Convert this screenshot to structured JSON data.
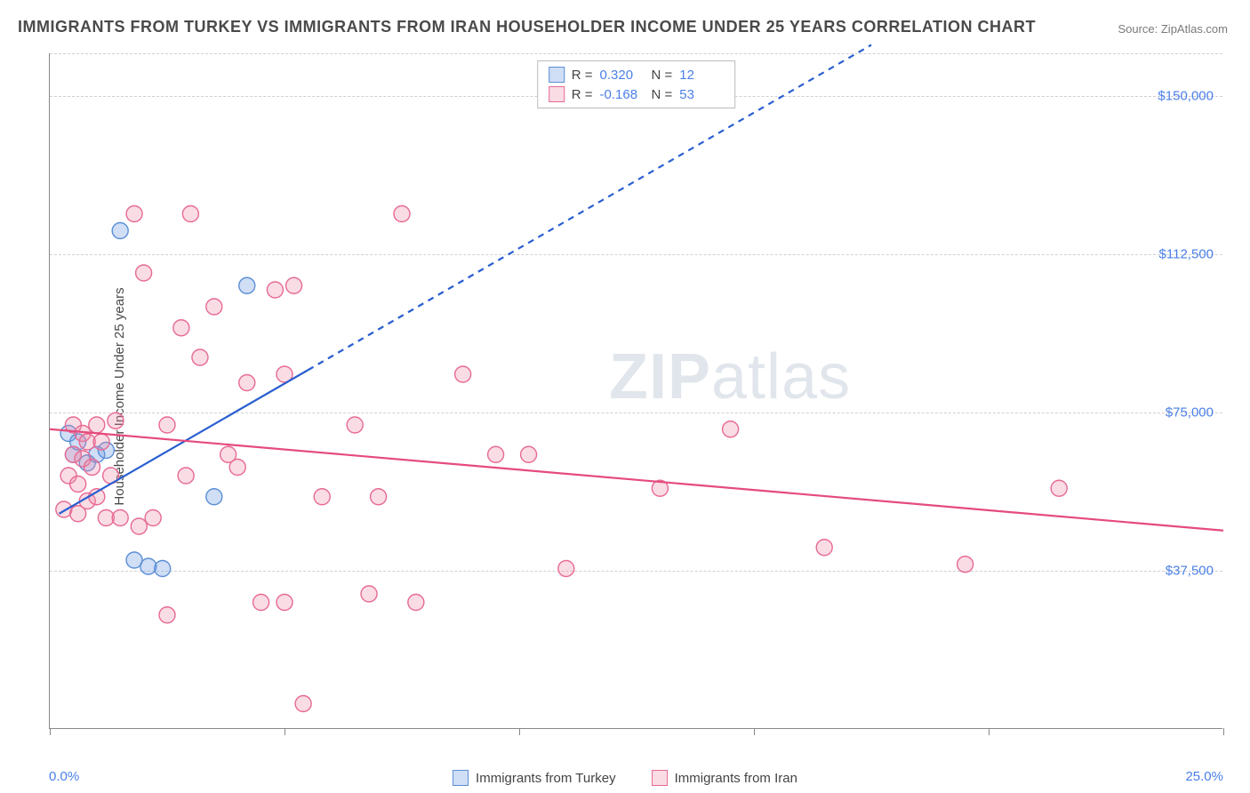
{
  "title": "IMMIGRANTS FROM TURKEY VS IMMIGRANTS FROM IRAN HOUSEHOLDER INCOME UNDER 25 YEARS CORRELATION CHART",
  "source_label": "Source: ",
  "source_name": "ZipAtlas.com",
  "ylabel": "Householder Income Under 25 years",
  "watermark_bold": "ZIP",
  "watermark_thin": "atlas",
  "chart": {
    "type": "scatter",
    "background_color": "#ffffff",
    "grid_color": "#d0d0d0",
    "axis_color": "#888888",
    "tick_label_color": "#4a7fe8",
    "x": {
      "min": 0,
      "max": 25,
      "unit": "%",
      "tick_step": 5,
      "min_label": "0.0%",
      "max_label": "25.0%"
    },
    "y": {
      "min": 0,
      "max": 160000,
      "unit": "$",
      "ticks": [
        37500,
        75000,
        112500,
        150000
      ],
      "tick_labels": [
        "$37,500",
        "$75,000",
        "$112,500",
        "$150,000"
      ]
    },
    "series": [
      {
        "key": "turkey",
        "label": "Immigrants from Turkey",
        "marker_fill": "rgba(120,160,230,0.35)",
        "marker_stroke": "#5b8fd6",
        "line_color": "#2a5fd0",
        "line_width": 2.2,
        "marker_radius": 9,
        "R": "0.320",
        "N": "12",
        "regression": {
          "x1": 0.2,
          "y1": 51000,
          "x2": 5.5,
          "y2": 85000,
          "extend_x2": 17.5,
          "extend_y2": 162000
        },
        "points": [
          {
            "x": 0.4,
            "y": 70000
          },
          {
            "x": 0.5,
            "y": 65000
          },
          {
            "x": 0.6,
            "y": 68000
          },
          {
            "x": 1.0,
            "y": 65000
          },
          {
            "x": 1.2,
            "y": 66000
          },
          {
            "x": 1.5,
            "y": 118000
          },
          {
            "x": 1.8,
            "y": 40000
          },
          {
            "x": 2.1,
            "y": 38500
          },
          {
            "x": 2.4,
            "y": 38000
          },
          {
            "x": 3.5,
            "y": 55000
          },
          {
            "x": 4.2,
            "y": 105000
          },
          {
            "x": 0.8,
            "y": 63000
          }
        ]
      },
      {
        "key": "iran",
        "label": "Immigrants from Iran",
        "marker_fill": "rgba(240,140,170,0.30)",
        "marker_stroke": "#e76a93",
        "line_color": "#e54b7d",
        "line_width": 2.2,
        "marker_radius": 9,
        "R": "-0.168",
        "N": "53",
        "regression": {
          "x1": 0,
          "y1": 71000,
          "x2": 25,
          "y2": 47000
        },
        "points": [
          {
            "x": 0.3,
            "y": 52000
          },
          {
            "x": 0.4,
            "y": 60000
          },
          {
            "x": 0.5,
            "y": 65000
          },
          {
            "x": 0.5,
            "y": 72000
          },
          {
            "x": 0.6,
            "y": 58000
          },
          {
            "x": 0.7,
            "y": 64000
          },
          {
            "x": 0.7,
            "y": 70000
          },
          {
            "x": 0.8,
            "y": 54000
          },
          {
            "x": 0.8,
            "y": 68000
          },
          {
            "x": 0.9,
            "y": 62000
          },
          {
            "x": 1.0,
            "y": 72000
          },
          {
            "x": 1.0,
            "y": 55000
          },
          {
            "x": 1.2,
            "y": 50000
          },
          {
            "x": 1.3,
            "y": 60000
          },
          {
            "x": 1.4,
            "y": 73000
          },
          {
            "x": 1.5,
            "y": 50000
          },
          {
            "x": 1.8,
            "y": 122000
          },
          {
            "x": 1.9,
            "y": 48000
          },
          {
            "x": 2.0,
            "y": 108000
          },
          {
            "x": 2.2,
            "y": 50000
          },
          {
            "x": 2.5,
            "y": 72000
          },
          {
            "x": 2.5,
            "y": 27000
          },
          {
            "x": 2.8,
            "y": 95000
          },
          {
            "x": 2.9,
            "y": 60000
          },
          {
            "x": 3.0,
            "y": 122000
          },
          {
            "x": 3.2,
            "y": 88000
          },
          {
            "x": 3.5,
            "y": 100000
          },
          {
            "x": 3.8,
            "y": 65000
          },
          {
            "x": 4.0,
            "y": 62000
          },
          {
            "x": 4.2,
            "y": 82000
          },
          {
            "x": 4.5,
            "y": 30000
          },
          {
            "x": 4.8,
            "y": 104000
          },
          {
            "x": 5.0,
            "y": 30000
          },
          {
            "x": 5.0,
            "y": 84000
          },
          {
            "x": 5.2,
            "y": 105000
          },
          {
            "x": 5.4,
            "y": 6000
          },
          {
            "x": 5.8,
            "y": 55000
          },
          {
            "x": 6.5,
            "y": 72000
          },
          {
            "x": 6.8,
            "y": 32000
          },
          {
            "x": 7.0,
            "y": 55000
          },
          {
            "x": 7.5,
            "y": 122000
          },
          {
            "x": 7.8,
            "y": 30000
          },
          {
            "x": 8.8,
            "y": 84000
          },
          {
            "x": 9.5,
            "y": 65000
          },
          {
            "x": 10.2,
            "y": 65000
          },
          {
            "x": 11.0,
            "y": 38000
          },
          {
            "x": 13.0,
            "y": 57000
          },
          {
            "x": 14.5,
            "y": 71000
          },
          {
            "x": 16.5,
            "y": 43000
          },
          {
            "x": 19.5,
            "y": 39000
          },
          {
            "x": 21.5,
            "y": 57000
          },
          {
            "x": 1.1,
            "y": 68000
          },
          {
            "x": 0.6,
            "y": 51000
          }
        ]
      }
    ],
    "legend": {
      "R_label": "R =",
      "N_label": "N ="
    }
  }
}
